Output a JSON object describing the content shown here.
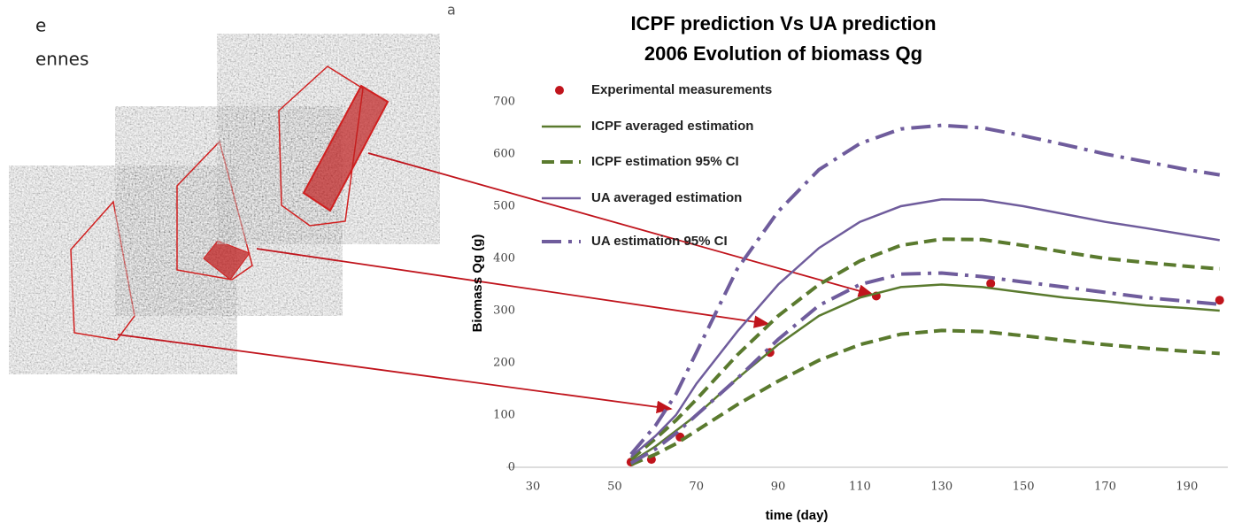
{
  "page_texts": {
    "fragment_1": "e",
    "fragment_2": "ennes",
    "panel_label": "a"
  },
  "chart_data": {
    "type": "line",
    "title": "ICPF prediction Vs UA prediction",
    "subtitle": "2006 Evolution of biomass Qg",
    "x_label": "time (day)",
    "y_label": "Biomass Qg (g)",
    "xlim": [
      30,
      200
    ],
    "ylim": [
      0,
      700
    ],
    "xticks": [
      30,
      50,
      70,
      90,
      110,
      130,
      150,
      170,
      190
    ],
    "yticks": [
      0,
      100,
      200,
      300,
      400,
      500,
      600,
      700
    ],
    "grid": false,
    "legend": "upper left",
    "series": [
      {
        "name": "Experimental measurements",
        "color": "#c0141c",
        "mode": "markers",
        "x": [
          54,
          59,
          66,
          88,
          114,
          142,
          198
        ],
        "values": [
          10,
          15,
          58,
          220,
          328,
          352,
          320
        ]
      },
      {
        "name": "ICPF averaged estimation",
        "color": "#5a7a2e",
        "mode": "solid",
        "x": [
          54,
          60,
          65,
          70,
          80,
          90,
          100,
          110,
          120,
          130,
          140,
          150,
          160,
          170,
          180,
          190,
          198
        ],
        "values": [
          10,
          40,
          70,
          100,
          170,
          235,
          290,
          325,
          345,
          350,
          345,
          335,
          325,
          318,
          310,
          305,
          300
        ]
      },
      {
        "name": "ICPF estimation 95% CI",
        "color": "#5a7a2e",
        "mode": "dashed",
        "x": [
          54,
          60,
          65,
          70,
          80,
          90,
          100,
          110,
          120,
          130,
          140,
          150,
          160,
          170,
          180,
          190,
          198
        ],
        "values": [
          15,
          55,
          90,
          130,
          215,
          290,
          350,
          395,
          425,
          437,
          436,
          425,
          412,
          400,
          392,
          385,
          380
        ]
      },
      {
        "name": null,
        "color": "#5a7a2e",
        "mode": "dashed",
        "x": [
          54,
          60,
          65,
          70,
          80,
          90,
          100,
          110,
          120,
          130,
          140,
          150,
          160,
          170,
          180,
          190,
          198
        ],
        "values": [
          5,
          25,
          45,
          70,
          120,
          165,
          205,
          235,
          255,
          262,
          260,
          252,
          243,
          235,
          228,
          222,
          218
        ]
      },
      {
        "name": "UA averaged estimation",
        "color": "#6f5c9c",
        "mode": "solid",
        "x": [
          54,
          60,
          65,
          70,
          80,
          90,
          100,
          110,
          120,
          130,
          140,
          150,
          160,
          170,
          180,
          190,
          198
        ],
        "values": [
          20,
          60,
          100,
          160,
          260,
          350,
          420,
          470,
          500,
          513,
          512,
          500,
          485,
          470,
          458,
          445,
          435
        ]
      },
      {
        "name": "UA estimation 95% CI",
        "color": "#6f5c9c",
        "mode": "dashdot",
        "x": [
          54,
          60,
          65,
          70,
          80,
          90,
          100,
          110,
          120,
          130,
          140,
          150,
          160,
          170,
          180,
          190,
          198
        ],
        "values": [
          25,
          80,
          140,
          220,
          380,
          490,
          570,
          620,
          648,
          655,
          650,
          635,
          618,
          600,
          585,
          570,
          560
        ]
      },
      {
        "name": null,
        "color": "#6f5c9c",
        "mode": "dashdot",
        "x": [
          54,
          60,
          65,
          70,
          80,
          90,
          100,
          110,
          120,
          130,
          140,
          150,
          160,
          170,
          180,
          190,
          198
        ],
        "values": [
          8,
          35,
          65,
          100,
          170,
          245,
          310,
          350,
          370,
          372,
          365,
          355,
          345,
          335,
          325,
          318,
          312
        ]
      }
    ]
  }
}
